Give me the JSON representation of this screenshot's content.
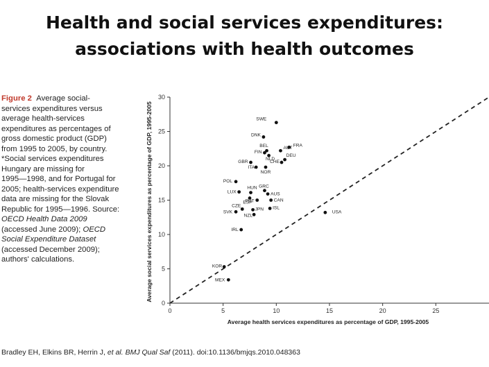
{
  "title": {
    "line1": "Health and social services expenditures:",
    "line2": "associations with health outcomes"
  },
  "caption": {
    "figure_label": "Figure 2",
    "lines": [
      "services expenditures versus",
      "average health-services",
      "expenditures as percentages of",
      "gross domestic product (GDP)",
      "from 1995 to 2005, by country.",
      "*Social services expenditures",
      "Hungary are missing for",
      "1995—1998, and for Portugal for",
      "2005; health-services expenditure",
      "data are missing for the Slovak",
      "Republic for 1995—1996. Source:"
    ],
    "first_line_rest": "Average social-",
    "source1": "OECD Health Data 2009",
    "source1_after": "(accessed June 2009);",
    "source2_a": "OECD",
    "source2_b": "Social Expenditure Dataset",
    "after_source2_line1": "(accessed December 2009);",
    "after_source2_line2": "authors' calculations."
  },
  "citation": {
    "authors": "Bradley EH, Elkins BR, Herrin J,",
    "etal_journal": "et al. BMJ Qual Saf",
    "rest": "(2011). doi:10.1136/bmjqs.2010.048363"
  },
  "chart_data": {
    "type": "scatter",
    "xlabel": "Average health services expenditures as percentage of GDP, 1995-2005",
    "ylabel": "Average social services expenditures as percentage of GDP, 1995-2005",
    "xlim": [
      0,
      30
    ],
    "ylim": [
      0,
      30
    ],
    "xticks": [
      0,
      5,
      10,
      15,
      20,
      25
    ],
    "yticks": [
      0,
      5,
      10,
      15,
      20,
      25,
      30
    ],
    "grid": false,
    "reference_line": "y = x (dashed)",
    "points": [
      {
        "label": "SWE",
        "x": 10.0,
        "y": 26.3
      },
      {
        "label": "DNK",
        "x": 8.8,
        "y": 24.2
      },
      {
        "label": "BEL",
        "x": 9.1,
        "y": 22.2
      },
      {
        "label": "FRA",
        "x": 11.2,
        "y": 22.7
      },
      {
        "label": "AUT",
        "x": 10.4,
        "y": 22.2
      },
      {
        "label": "FIN",
        "x": 8.9,
        "y": 21.9
      },
      {
        "label": "NLD",
        "x": 9.3,
        "y": 21.5
      },
      {
        "label": "DEU",
        "x": 10.8,
        "y": 20.9
      },
      {
        "label": "CHE",
        "x": 10.5,
        "y": 20.5
      },
      {
        "label": "GBR",
        "x": 7.6,
        "y": 20.5
      },
      {
        "label": "ITA",
        "x": 8.1,
        "y": 19.8
      },
      {
        "label": "NOR",
        "x": 9.0,
        "y": 19.8
      },
      {
        "label": "POL",
        "x": 6.2,
        "y": 17.7
      },
      {
        "label": "HUN",
        "x": 7.6,
        "y": 16.1
      },
      {
        "label": "GRC",
        "x": 8.9,
        "y": 16.4
      },
      {
        "label": "LUX",
        "x": 6.5,
        "y": 16.2
      },
      {
        "label": "AUS",
        "x": 9.2,
        "y": 15.9
      },
      {
        "label": "ESP",
        "x": 7.5,
        "y": 15.3
      },
      {
        "label": "PRT",
        "x": 8.2,
        "y": 15.0
      },
      {
        "label": "CAN",
        "x": 9.5,
        "y": 15.0
      },
      {
        "label": "CZE",
        "x": 6.8,
        "y": 13.7
      },
      {
        "label": "JPN",
        "x": 7.8,
        "y": 13.6
      },
      {
        "label": "ISL",
        "x": 9.4,
        "y": 13.8
      },
      {
        "label": "SVK",
        "x": 6.2,
        "y": 13.3
      },
      {
        "label": "NZL",
        "x": 7.9,
        "y": 12.9
      },
      {
        "label": "USA",
        "x": 14.6,
        "y": 13.2
      },
      {
        "label": "IRL",
        "x": 6.7,
        "y": 10.7
      },
      {
        "label": "KOR",
        "x": 5.1,
        "y": 5.3
      },
      {
        "label": "MEX",
        "x": 5.5,
        "y": 3.4
      }
    ]
  }
}
